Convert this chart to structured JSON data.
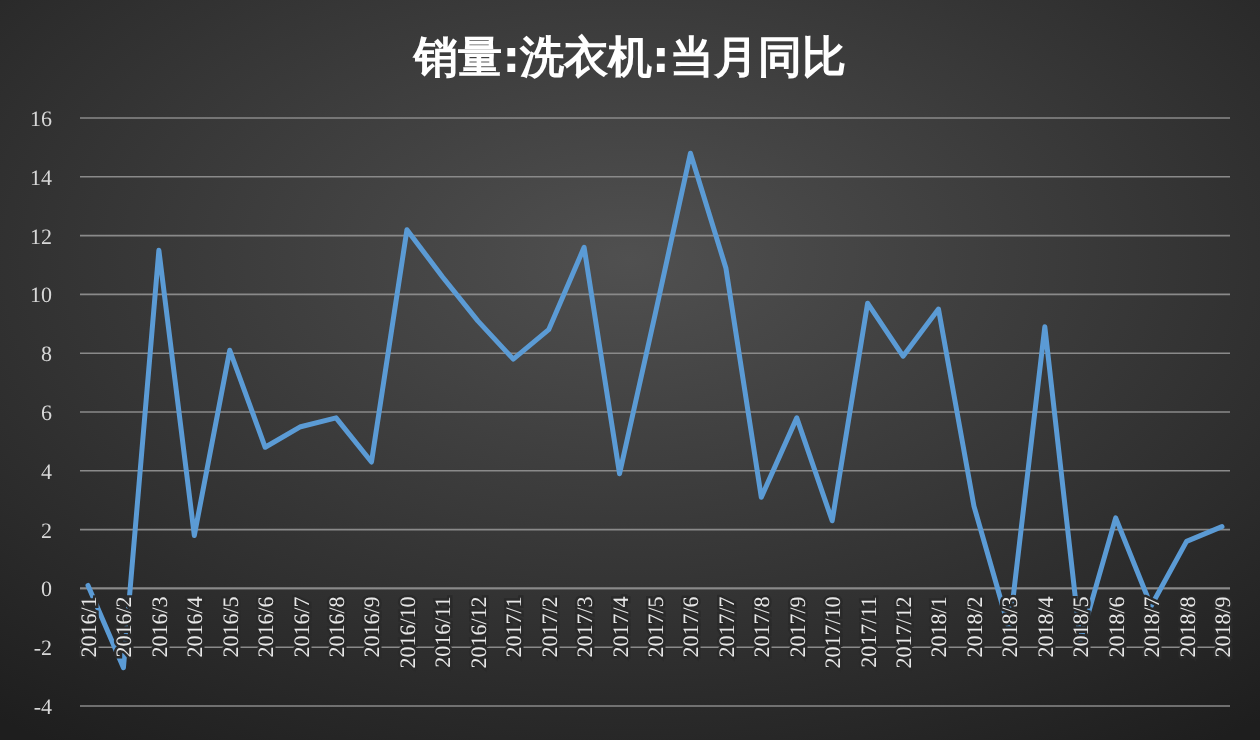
{
  "chart_data": {
    "type": "line",
    "title": "销量:洗衣机:当月同比",
    "categories": [
      "2016/1",
      "2016/2",
      "2016/3",
      "2016/4",
      "2016/5",
      "2016/6",
      "2016/7",
      "2016/8",
      "2016/9",
      "2016/10",
      "2016/11",
      "2016/12",
      "2017/1",
      "2017/2",
      "2017/3",
      "2017/4",
      "2017/5",
      "2017/6",
      "2017/7",
      "2017/8",
      "2017/9",
      "2017/10",
      "2017/11",
      "2017/12",
      "2018/1",
      "2018/2",
      "2018/3",
      "2018/4",
      "2018/5",
      "2018/6",
      "2018/7",
      "2018/8",
      "2018/9"
    ],
    "series": [
      {
        "color": "#5b9bd5",
        "values": [
          0.1,
          -2.7,
          11.5,
          1.8,
          8.1,
          4.8,
          5.5,
          5.8,
          4.3,
          12.2,
          10.6,
          9.1,
          7.8,
          8.8,
          11.6,
          3.9,
          9.3,
          14.8,
          10.9,
          3.1,
          5.8,
          2.3,
          9.7,
          7.9,
          9.5,
          2.8,
          -1.4,
          8.9,
          -1.8,
          2.4,
          -0.6,
          1.6,
          2.1
        ]
      }
    ],
    "ylim": [
      -4,
      16
    ],
    "yticks": [
      -4,
      -2,
      0,
      2,
      4,
      6,
      8,
      10,
      12,
      14,
      16
    ],
    "grid": "y",
    "marker": "none",
    "line_style": "solid"
  }
}
